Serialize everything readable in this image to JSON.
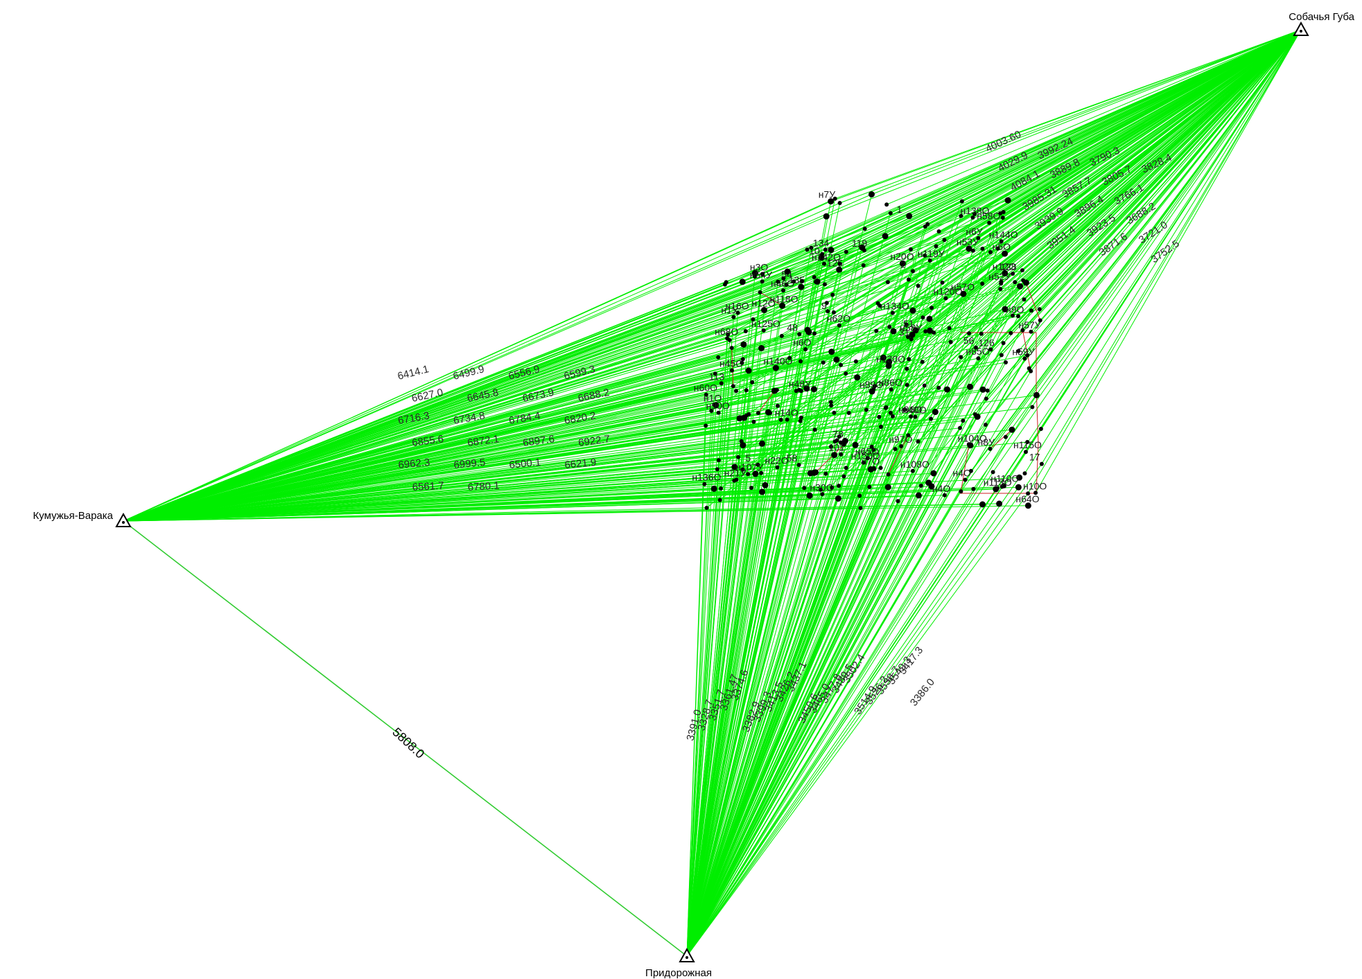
{
  "colors": {
    "ray": "#00ee00",
    "baseline": "#33cc33",
    "traverse": "#cc2222",
    "point": "#000000",
    "background": "#ffffff"
  },
  "stations": [
    {
      "id": "kumuzhya",
      "label": "Кумужья-Варака",
      "icon": "triangle-station-icon"
    },
    {
      "id": "sobachya",
      "label": "Собачья Губа",
      "icon": "triangle-station-icon"
    },
    {
      "id": "pridorozhnaya",
      "label": "Придорожная",
      "icon": "triangle-station-icon"
    }
  ],
  "baseline": {
    "from": "kumuzhya",
    "to": "pridorozhnaya",
    "distance": "5808.0"
  },
  "point_labels": [
    "н1О",
    "н3О",
    "н4О",
    "н14О",
    "н12О",
    "н10О",
    "н9О",
    "н6О",
    "н5О",
    "н7О",
    "н1У",
    "н4О",
    "н7У",
    "н46О",
    "н45О",
    "н6У",
    "н57О",
    "н58О",
    "н65О",
    "н68О",
    "н64О",
    "н62О",
    "н60О",
    "н8У",
    "н12О",
    "н21У",
    "н22О",
    "н16О",
    "н20О",
    "н30О",
    "н40О",
    "н48У",
    "н53У",
    "н52У",
    "н54У",
    "н57У",
    "н58У",
    "н59У",
    "н85О",
    "н86О",
    "н89О",
    "н90О",
    "н96О",
    "н97О",
    "н104О",
    "н107У",
    "н108О",
    "н110О",
    "н113О",
    "н115О",
    "н118О",
    "н119У",
    "н120О",
    "н125О",
    "н130О",
    "н134О",
    "н136О",
    "н138О",
    "н140О",
    "н142О",
    "н144О",
    "н150О",
    "1",
    "2",
    "5",
    "9",
    "10",
    "17",
    "31",
    "48",
    "51",
    "54",
    "56",
    "58",
    "78",
    "101",
    "113",
    "119",
    "125",
    "126",
    "128",
    "134",
    "135"
  ],
  "distance_labels": {
    "kumuzhya": [
      "6414.1",
      "6499.9",
      "6556.9",
      "6599.3",
      "6627.0",
      "6645.8",
      "6673.9",
      "6688.2",
      "6716.3",
      "6734.8",
      "6784.4",
      "6820.2",
      "6855.6",
      "6872.1",
      "6897.6",
      "6922.7",
      "6962.3",
      "6999.5",
      "6500.1",
      "6621.9",
      "6561.7",
      "6780.1"
    ],
    "sobachya": [
      "4003.60",
      "4029.9",
      "4084.1",
      "3985.31",
      "3939.9",
      "3951.4",
      "3992.24",
      "3889.8",
      "3857.7",
      "3896.4",
      "3923.5",
      "3871.6",
      "3790.3",
      "3805.7",
      "3766.1",
      "3688.2",
      "3721.0",
      "3752.5",
      "3828.4"
    ],
    "pridorozhnaya": [
      "3391.0",
      "3328.7",
      "3351.7",
      "3361.47",
      "3374.6",
      "3382.9",
      "3399.3",
      "3413.5",
      "3426.2",
      "3437.1",
      "3450.6",
      "3465.0",
      "3477.8",
      "3489.5",
      "3502.4",
      "3514.9",
      "3526.2",
      "3538.7",
      "3549.3",
      "3417.3",
      "3386.0"
    ]
  }
}
